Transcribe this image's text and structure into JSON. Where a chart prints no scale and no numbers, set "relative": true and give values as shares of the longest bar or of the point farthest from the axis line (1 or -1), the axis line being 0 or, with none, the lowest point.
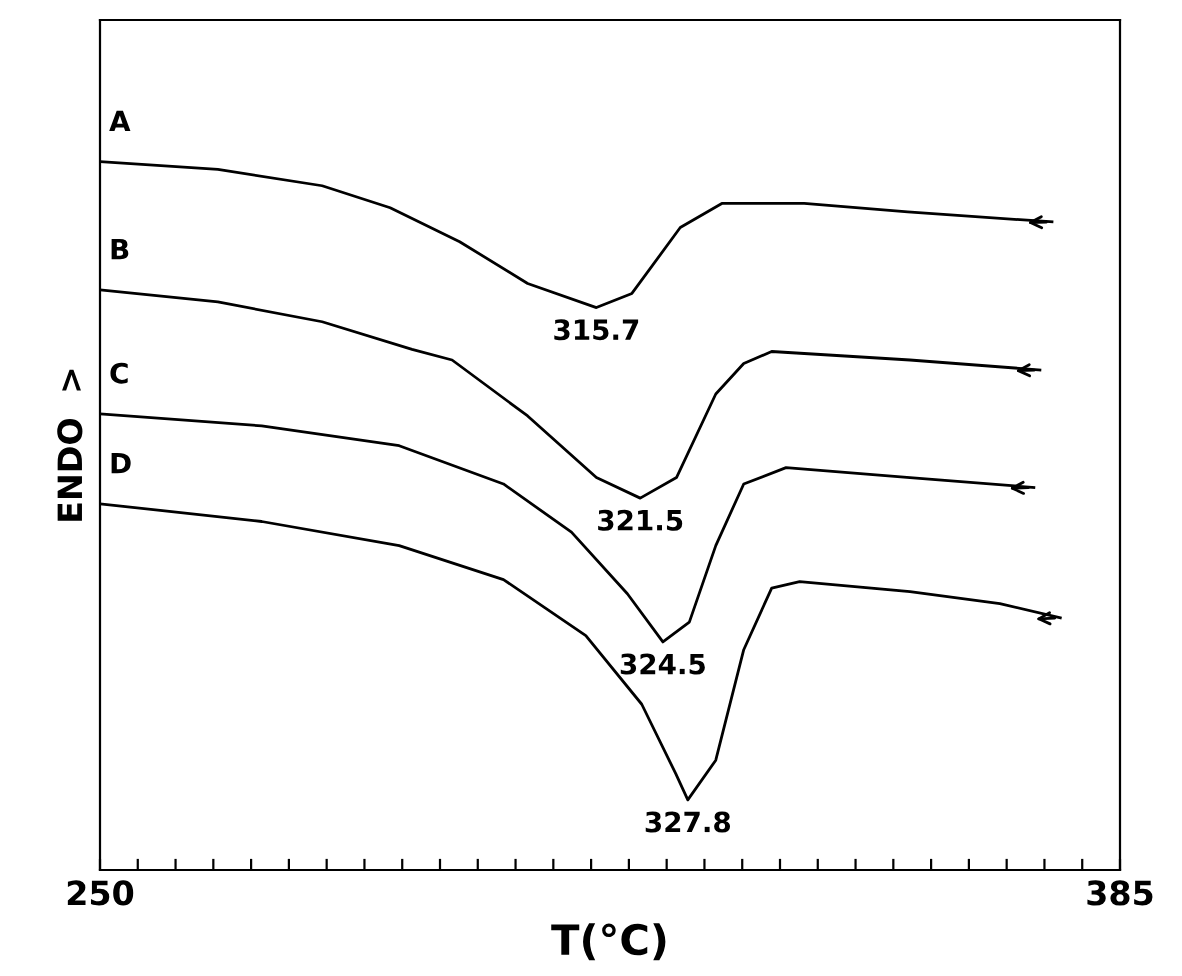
{
  "chart_data": {
    "type": "line",
    "relative": true,
    "xlabel": "T(°C)",
    "ylabel": "ENDO  >",
    "xlim": [
      250,
      385
    ],
    "xticks": [
      250,
      {
        "value": 255,
        "label": null
      },
      {
        "value": 260,
        "label": null
      },
      {
        "value": 265,
        "label": null
      },
      {
        "value": 270,
        "label": null
      },
      {
        "value": 275,
        "label": null
      },
      {
        "value": 280,
        "label": null
      },
      {
        "value": 285,
        "label": null
      },
      {
        "value": 290,
        "label": null
      },
      {
        "value": 295,
        "label": null
      },
      {
        "value": 300,
        "label": null
      },
      {
        "value": 305,
        "label": null
      },
      {
        "value": 310,
        "label": null
      },
      {
        "value": 315,
        "label": null
      },
      {
        "value": 320,
        "label": null
      },
      {
        "value": 325,
        "label": null
      },
      {
        "value": 330,
        "label": null
      },
      {
        "value": 335,
        "label": null
      },
      {
        "value": 340,
        "label": null
      },
      {
        "value": 345,
        "label": null
      },
      {
        "value": 350,
        "label": null
      },
      {
        "value": 355,
        "label": null
      },
      {
        "value": 360,
        "label": null
      },
      {
        "value": 365,
        "label": null
      },
      {
        "value": 370,
        "label": null
      },
      {
        "value": 375,
        "label": null
      },
      {
        "value": 380,
        "label": null
      },
      385
    ],
    "series": [
      {
        "name": "A",
        "color": "#000000",
        "x": [
          250,
          265.6,
          279.4,
          288.4,
          297.6,
          306.6,
          315.7,
          320.4,
          326.8,
          332.3,
          343.2,
          356.9,
          376.0
        ],
        "values": [
          1.0,
          0.989,
          0.966,
          0.935,
          0.887,
          0.828,
          0.794,
          0.814,
          0.907,
          0.941,
          0.941,
          0.929,
          0.915
        ]
      },
      {
        "name": "B",
        "color": "#000000",
        "x": [
          250,
          265.6,
          279.4,
          291.3,
          296.6,
          306.6,
          315.7,
          321.5,
          326.3,
          331.5,
          335.2,
          338.9,
          357.2,
          374.4
        ],
        "values": [
          0.819,
          0.802,
          0.774,
          0.735,
          0.72,
          0.641,
          0.554,
          0.525,
          0.554,
          0.672,
          0.715,
          0.732,
          0.72,
          0.706
        ]
      },
      {
        "name": "C",
        "color": "#000000",
        "x": [
          250,
          271.4,
          289.6,
          303.4,
          312.4,
          319.8,
          324.5,
          328.0,
          331.5,
          335.2,
          340.8,
          357.2,
          373.6
        ],
        "values": [
          0.644,
          0.627,
          0.599,
          0.545,
          0.477,
          0.39,
          0.322,
          0.35,
          0.458,
          0.545,
          0.568,
          0.554,
          0.54
        ]
      },
      {
        "name": "D",
        "color": "#000000",
        "x": [
          250,
          271.4,
          289.6,
          303.4,
          314.3,
          321.7,
          326.2,
          327.8,
          331.5,
          335.2,
          338.9,
          342.6,
          357.2,
          369.1,
          377.1
        ],
        "values": [
          0.517,
          0.492,
          0.458,
          0.41,
          0.331,
          0.234,
          0.136,
          0.099,
          0.155,
          0.311,
          0.398,
          0.407,
          0.393,
          0.376,
          0.356
        ]
      }
    ],
    "annotations": [
      {
        "text": "315.7",
        "x": 315.7,
        "y": 0.794
      },
      {
        "text": "321.5",
        "x": 321.5,
        "y": 0.525
      },
      {
        "text": "324.5",
        "x": 324.5,
        "y": 0.322
      },
      {
        "text": "327.8",
        "x": 327.8,
        "y": 0.099
      }
    ],
    "legend": false
  }
}
